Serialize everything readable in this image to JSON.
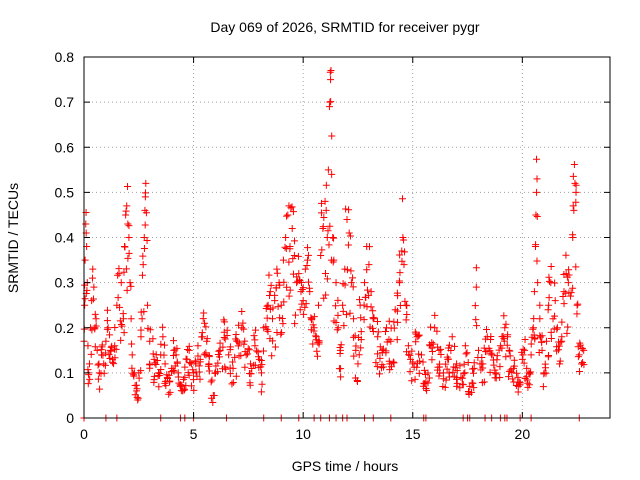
{
  "chart_data": {
    "type": "scatter",
    "title": "Day 069 of 2026, SRMTID for receiver pygr",
    "xlabel": "GPS time / hours",
    "ylabel": "SRMTID / TECUs",
    "xlim": [
      0,
      24
    ],
    "ylim": [
      0,
      0.8
    ],
    "xticks": [
      0,
      5,
      10,
      15,
      20
    ],
    "xtick_labels": [
      "0",
      "5",
      "10",
      "15",
      "20"
    ],
    "yticks": [
      0,
      0.1,
      0.2,
      0.3,
      0.4,
      0.5,
      0.6,
      0.7,
      0.8
    ],
    "ytick_labels": [
      "0",
      "0.1",
      "0.2",
      "0.3",
      "0.4",
      "0.5",
      "0.6",
      "0.7",
      "0.8"
    ],
    "grid": true,
    "marker": "plus",
    "color": "#ff0000",
    "legend": "none",
    "points": [
      [
        0.0,
        0.17
      ],
      [
        0.03,
        0.25
      ],
      [
        0.05,
        0.35
      ],
      [
        0.08,
        0.43
      ],
      [
        0.1,
        0.41
      ],
      [
        0.12,
        0.38
      ],
      [
        0.15,
        0.3
      ],
      [
        0.18,
        0.16
      ],
      [
        0.2,
        0.1
      ],
      [
        0.25,
        0.12
      ],
      [
        0.3,
        0.2
      ],
      [
        0.35,
        0.26
      ],
      [
        0.4,
        0.33
      ],
      [
        0.45,
        0.29
      ],
      [
        0.5,
        0.2
      ],
      [
        0.55,
        0.22
      ],
      [
        0.6,
        0.15
      ],
      [
        0.7,
        0.1
      ],
      [
        0.8,
        0.14
      ],
      [
        0.9,
        0.12
      ],
      [
        1.0,
        0.17
      ],
      [
        1.1,
        0.2
      ],
      [
        1.2,
        0.15
      ],
      [
        1.3,
        0.13
      ],
      [
        1.4,
        0.16
      ],
      [
        1.5,
        0.25
      ],
      [
        1.6,
        0.32
      ],
      [
        1.7,
        0.3
      ],
      [
        1.8,
        0.22
      ],
      [
        1.85,
        0.38
      ],
      [
        1.9,
        0.45
      ],
      [
        1.95,
        0.47
      ],
      [
        2.0,
        0.43
      ],
      [
        2.05,
        0.4
      ],
      [
        2.1,
        0.3
      ],
      [
        2.15,
        0.22
      ],
      [
        2.2,
        0.14
      ],
      [
        2.3,
        0.1
      ],
      [
        2.4,
        0.06
      ],
      [
        2.45,
        0.04
      ],
      [
        2.5,
        0.1
      ],
      [
        2.6,
        0.18
      ],
      [
        2.65,
        0.22
      ],
      [
        2.7,
        0.34
      ],
      [
        2.75,
        0.4
      ],
      [
        2.78,
        0.46
      ],
      [
        2.8,
        0.49
      ],
      [
        2.82,
        0.52
      ],
      [
        2.9,
        0.25
      ],
      [
        3.0,
        0.17
      ],
      [
        3.2,
        0.13
      ],
      [
        3.4,
        0.1
      ],
      [
        3.5,
        0.14
      ],
      [
        3.6,
        0.18
      ],
      [
        3.7,
        0.12
      ],
      [
        3.8,
        0.09
      ],
      [
        3.9,
        0.08
      ],
      [
        4.0,
        0.11
      ],
      [
        4.1,
        0.15
      ],
      [
        4.2,
        0.14
      ],
      [
        4.3,
        0.1
      ],
      [
        4.4,
        0.07
      ],
      [
        4.5,
        0.06
      ],
      [
        4.6,
        0.09
      ],
      [
        4.7,
        0.13
      ],
      [
        4.8,
        0.15
      ],
      [
        4.9,
        0.12
      ],
      [
        5.0,
        0.1
      ],
      [
        5.1,
        0.12
      ],
      [
        5.2,
        0.16
      ],
      [
        5.3,
        0.13
      ],
      [
        5.4,
        0.18
      ],
      [
        5.5,
        0.21
      ],
      [
        5.6,
        0.17
      ],
      [
        5.7,
        0.12
      ],
      [
        5.8,
        0.08
      ],
      [
        5.9,
        0.05
      ],
      [
        6.0,
        0.1
      ],
      [
        6.2,
        0.15
      ],
      [
        6.4,
        0.19
      ],
      [
        6.6,
        0.14
      ],
      [
        6.8,
        0.11
      ],
      [
        7.0,
        0.17
      ],
      [
        7.2,
        0.2
      ],
      [
        7.4,
        0.14
      ],
      [
        7.6,
        0.12
      ],
      [
        7.8,
        0.16
      ],
      [
        8.0,
        0.13
      ],
      [
        8.1,
        0.1
      ],
      [
        8.2,
        0.2
      ],
      [
        8.4,
        0.25
      ],
      [
        8.5,
        0.28
      ],
      [
        8.6,
        0.22
      ],
      [
        8.7,
        0.26
      ],
      [
        8.8,
        0.33
      ],
      [
        8.9,
        0.3
      ],
      [
        9.0,
        0.25
      ],
      [
        9.1,
        0.35
      ],
      [
        9.2,
        0.4
      ],
      [
        9.3,
        0.45
      ],
      [
        9.35,
        0.47
      ],
      [
        9.4,
        0.38
      ],
      [
        9.5,
        0.42
      ],
      [
        9.6,
        0.36
      ],
      [
        9.7,
        0.3
      ],
      [
        9.8,
        0.32
      ],
      [
        9.9,
        0.28
      ],
      [
        10.0,
        0.26
      ],
      [
        10.1,
        0.33
      ],
      [
        10.2,
        0.35
      ],
      [
        10.3,
        0.28
      ],
      [
        10.4,
        0.22
      ],
      [
        10.5,
        0.2
      ],
      [
        10.6,
        0.18
      ],
      [
        10.7,
        0.25
      ],
      [
        10.8,
        0.36
      ],
      [
        10.9,
        0.42
      ],
      [
        11.0,
        0.48
      ],
      [
        11.05,
        0.46
      ],
      [
        11.1,
        0.4
      ],
      [
        11.15,
        0.55
      ],
      [
        11.2,
        0.69
      ],
      [
        11.22,
        0.7
      ],
      [
        11.25,
        0.75
      ],
      [
        11.27,
        0.77
      ],
      [
        11.3,
        0.54
      ],
      [
        11.35,
        0.4
      ],
      [
        11.4,
        0.35
      ],
      [
        11.5,
        0.3
      ],
      [
        11.6,
        0.2
      ],
      [
        11.7,
        0.15
      ],
      [
        11.8,
        0.25
      ],
      [
        11.9,
        0.33
      ],
      [
        12.0,
        0.44
      ],
      [
        12.1,
        0.41
      ],
      [
        12.2,
        0.3
      ],
      [
        12.3,
        0.22
      ],
      [
        12.4,
        0.15
      ],
      [
        12.5,
        0.12
      ],
      [
        12.6,
        0.25
      ],
      [
        12.8,
        0.3
      ],
      [
        12.9,
        0.38
      ],
      [
        13.0,
        0.34
      ],
      [
        13.1,
        0.28
      ],
      [
        13.2,
        0.22
      ],
      [
        13.4,
        0.18
      ],
      [
        13.6,
        0.15
      ],
      [
        13.8,
        0.2
      ],
      [
        14.0,
        0.17
      ],
      [
        14.2,
        0.24
      ],
      [
        14.4,
        0.3
      ],
      [
        14.5,
        0.37
      ],
      [
        14.55,
        0.4
      ],
      [
        14.6,
        0.34
      ],
      [
        14.7,
        0.25
      ],
      [
        14.8,
        0.16
      ],
      [
        14.9,
        0.13
      ],
      [
        15.0,
        0.12
      ],
      [
        15.2,
        0.18
      ],
      [
        15.4,
        0.14
      ],
      [
        15.6,
        0.08
      ],
      [
        15.8,
        0.16
      ],
      [
        16.0,
        0.2
      ],
      [
        16.2,
        0.15
      ],
      [
        16.4,
        0.1
      ],
      [
        16.6,
        0.13
      ],
      [
        16.8,
        0.18
      ],
      [
        17.0,
        0.12
      ],
      [
        17.2,
        0.09
      ],
      [
        17.4,
        0.16
      ],
      [
        17.6,
        0.07
      ],
      [
        17.8,
        0.11
      ],
      [
        17.9,
        0.29
      ],
      [
        18.0,
        0.15
      ],
      [
        18.2,
        0.12
      ],
      [
        18.4,
        0.18
      ],
      [
        18.6,
        0.14
      ],
      [
        18.8,
        0.1
      ],
      [
        19.0,
        0.16
      ],
      [
        19.2,
        0.2
      ],
      [
        19.4,
        0.15
      ],
      [
        19.6,
        0.11
      ],
      [
        19.8,
        0.09
      ],
      [
        20.0,
        0.13
      ],
      [
        20.1,
        0.15
      ],
      [
        20.2,
        0.11
      ],
      [
        20.3,
        0.1
      ],
      [
        20.4,
        0.14
      ],
      [
        20.5,
        0.2
      ],
      [
        20.55,
        0.28
      ],
      [
        20.6,
        0.38
      ],
      [
        20.62,
        0.45
      ],
      [
        20.65,
        0.5
      ],
      [
        20.67,
        0.53
      ],
      [
        20.7,
        0.3
      ],
      [
        20.8,
        0.22
      ],
      [
        20.9,
        0.15
      ],
      [
        21.0,
        0.1
      ],
      [
        21.1,
        0.17
      ],
      [
        21.2,
        0.25
      ],
      [
        21.3,
        0.3
      ],
      [
        21.4,
        0.22
      ],
      [
        21.5,
        0.26
      ],
      [
        21.6,
        0.2
      ],
      [
        21.7,
        0.12
      ],
      [
        21.8,
        0.18
      ],
      [
        21.9,
        0.28
      ],
      [
        22.0,
        0.32
      ],
      [
        22.1,
        0.3
      ],
      [
        22.2,
        0.27
      ],
      [
        22.3,
        0.4
      ],
      [
        22.35,
        0.46
      ],
      [
        22.4,
        0.52
      ],
      [
        22.45,
        0.5
      ],
      [
        22.5,
        0.25
      ],
      [
        22.6,
        0.14
      ],
      [
        22.7,
        0.12
      ],
      [
        22.8,
        0.15
      ]
    ],
    "zero_points_x": [
      0.0,
      1.0,
      1.5,
      3.5,
      4.4,
      4.6,
      5.0,
      6.5,
      8.2,
      9.0,
      9.8,
      10.5,
      10.8,
      11.2,
      11.5,
      11.8,
      12.0,
      12.8,
      13.2,
      14.0,
      15.5,
      15.6,
      17.3,
      17.5,
      17.6,
      18.3,
      18.6,
      19.0,
      19.2,
      19.3,
      19.9,
      20.4,
      22.6
    ]
  }
}
